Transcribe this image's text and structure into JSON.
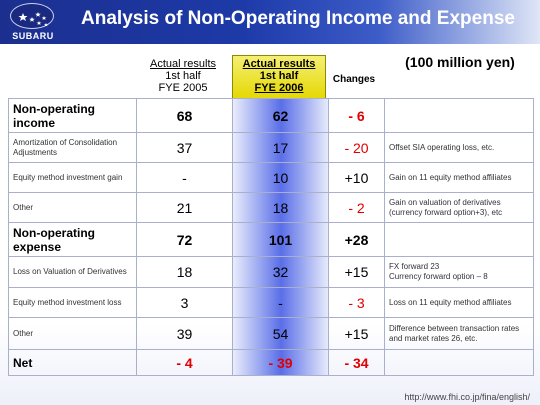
{
  "header": {
    "title": "Analysis of Non-Operating Income and Expense",
    "logo_text": "SUBARU"
  },
  "columns": {
    "prev_line1": "Actual results",
    "prev_line2": "1st half",
    "prev_line3": "FYE 2005",
    "curr_line1": "Actual results",
    "curr_line2": "1st half",
    "curr_line3": "FYE 2006",
    "changes": "Changes"
  },
  "units": "(100 million yen)",
  "rows": [
    {
      "label": "Non-operating income",
      "prev": "68",
      "curr": "62",
      "change": "- 6",
      "note": ""
    },
    {
      "label": "Amortization of Consolidation Adjustments",
      "prev": "37",
      "curr": "17",
      "change": "- 20",
      "note": "Offset SIA operating loss, etc."
    },
    {
      "label": "Equity method investment gain",
      "prev": "-",
      "curr": "10",
      "change": "+10",
      "note": "Gain on 11 equity method affiliates"
    },
    {
      "label": "Other",
      "prev": "21",
      "curr": "18",
      "change": "- 2",
      "note": "Gain on valuation of derivatives (currency forward option+3), etc"
    },
    {
      "label": "Non-operating expense",
      "prev": "72",
      "curr": "101",
      "change": "+28",
      "note": ""
    },
    {
      "label": "Loss on Valuation of Derivatives",
      "prev": "18",
      "curr": "32",
      "change": "+15",
      "note": "FX forward 23",
      "note2": "Currency forward option – 8"
    },
    {
      "label": "Equity method investment loss",
      "prev": "3",
      "curr": "-",
      "change": "- 3",
      "note": "Loss on 11 equity method affiliates"
    },
    {
      "label": "Other",
      "prev": "39",
      "curr": "54",
      "change": "+15",
      "note": "Difference between transaction rates and market rates 26, etc."
    },
    {
      "label": "Net",
      "prev": "- 4",
      "curr": "- 39",
      "change": "- 34",
      "note": ""
    }
  ],
  "footer": {
    "url": "http://www.fhi.co.jp/fina/english/"
  },
  "colors": {
    "header_blue": "#1d3aa8",
    "highlight_yellow": "#e4d800",
    "negative_red": "#e00000",
    "column_gradient_blue": "#5a6ee8"
  }
}
